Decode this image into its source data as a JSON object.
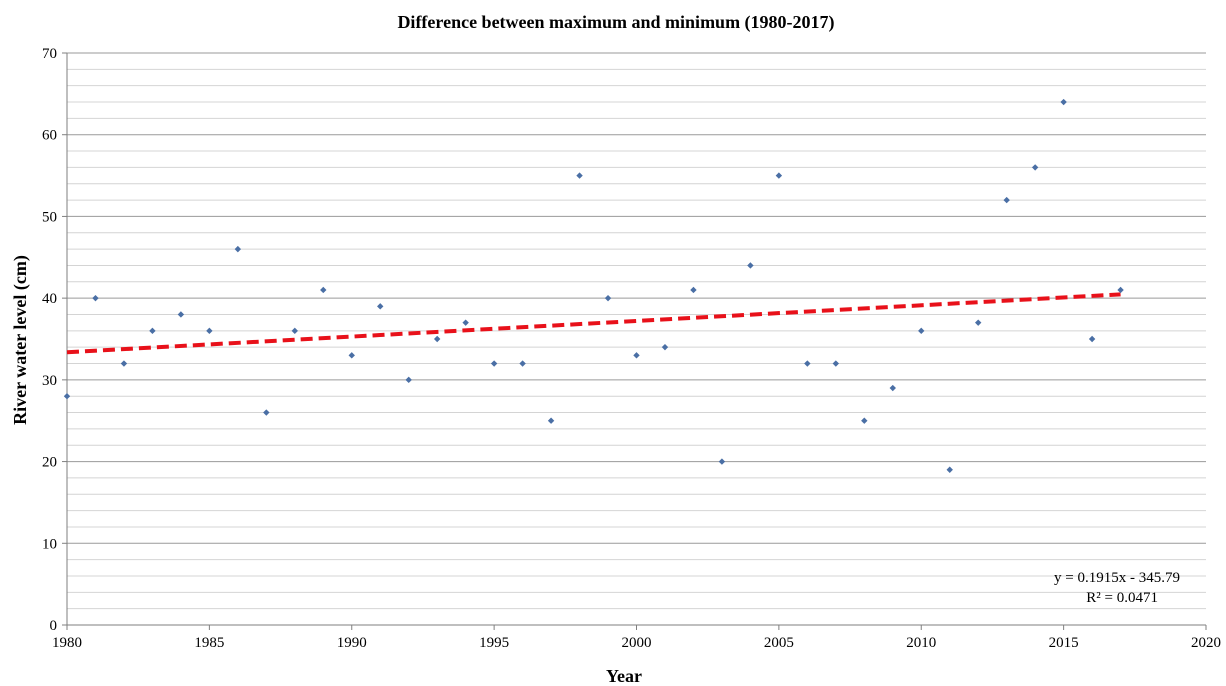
{
  "chart_data": {
    "type": "scatter",
    "title": "Difference between maximum and minimum (1980-2017)",
    "xlabel": "Year",
    "ylabel": "River water level (cm)",
    "xlim": [
      1980,
      2020
    ],
    "ylim": [
      0,
      70
    ],
    "xticks": [
      "1980",
      "1985",
      "1990",
      "1995",
      "2000",
      "2005",
      "2010",
      "2015",
      "2020"
    ],
    "yticks": [
      "0",
      "10",
      "20",
      "30",
      "40",
      "50",
      "60",
      "70"
    ],
    "grid": true,
    "legend": "none",
    "point_color": "#4a6fa5",
    "trend_color": "#e8111a",
    "x": [
      1980,
      1981,
      1982,
      1983,
      1984,
      1985,
      1986,
      1987,
      1988,
      1989,
      1990,
      1991,
      1992,
      1993,
      1994,
      1995,
      1996,
      1997,
      1998,
      1999,
      2000,
      2001,
      2002,
      2003,
      2004,
      2005,
      2006,
      2007,
      2008,
      2009,
      2010,
      2011,
      2012,
      2013,
      2014,
      2015,
      2016,
      2017
    ],
    "y": [
      28,
      40,
      32,
      36,
      38,
      36,
      46,
      26,
      36,
      41,
      33,
      39,
      30,
      35,
      37,
      32,
      32,
      25,
      55,
      40,
      33,
      34,
      41,
      20,
      44,
      55,
      32,
      32,
      25,
      29,
      36,
      19,
      37,
      52,
      56,
      64,
      35,
      41
    ],
    "trendline": {
      "type": "linear",
      "slope": 0.1915,
      "intercept": -345.79,
      "equation": "y = 0.1915x - 345.79",
      "r_squared": "R² = 0.0471"
    }
  }
}
